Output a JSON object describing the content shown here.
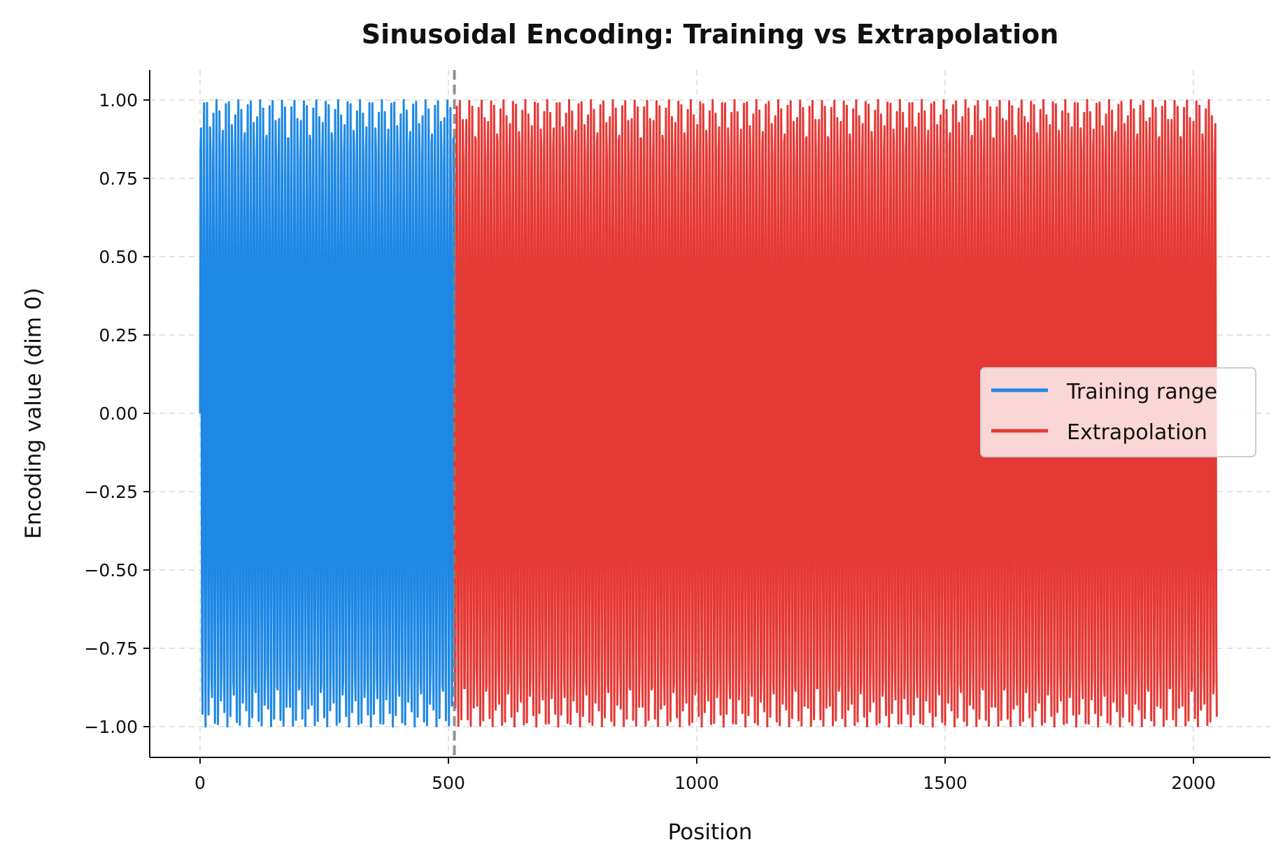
{
  "chart_data": {
    "type": "line",
    "title": "Sinusoidal Encoding: Training vs Extrapolation",
    "xlabel": "Position",
    "ylabel": "Encoding value (dim 0)",
    "xlim": [
      -100,
      2150
    ],
    "ylim": [
      -1.1,
      1.1
    ],
    "xticks": [
      0,
      500,
      1000,
      1500,
      2000
    ],
    "xtick_labels": [
      "0",
      "500",
      "1000",
      "1500",
      "2000"
    ],
    "yticks": [
      1.0,
      0.75,
      0.5,
      0.25,
      0.0,
      -0.25,
      -0.5,
      -0.75,
      -1.0
    ],
    "ytick_labels": [
      "1.00",
      "0.75",
      "0.50",
      "0.25",
      "0.00",
      "−0.25",
      "−0.50",
      "−0.75",
      "−1.00"
    ],
    "grid": true,
    "legend_position": "center-right",
    "series": [
      {
        "name": "Training range",
        "x_start": 0,
        "x_end": 512,
        "formula": "sin(position)",
        "color": "#1e88e5"
      },
      {
        "name": "Extrapolation",
        "x_start": 512,
        "x_end": 2047,
        "formula": "sin(position)",
        "color": "#e53935"
      }
    ],
    "annotations": [
      {
        "type": "vertical-dashed-line",
        "x": 512,
        "color": "#808080"
      }
    ]
  }
}
